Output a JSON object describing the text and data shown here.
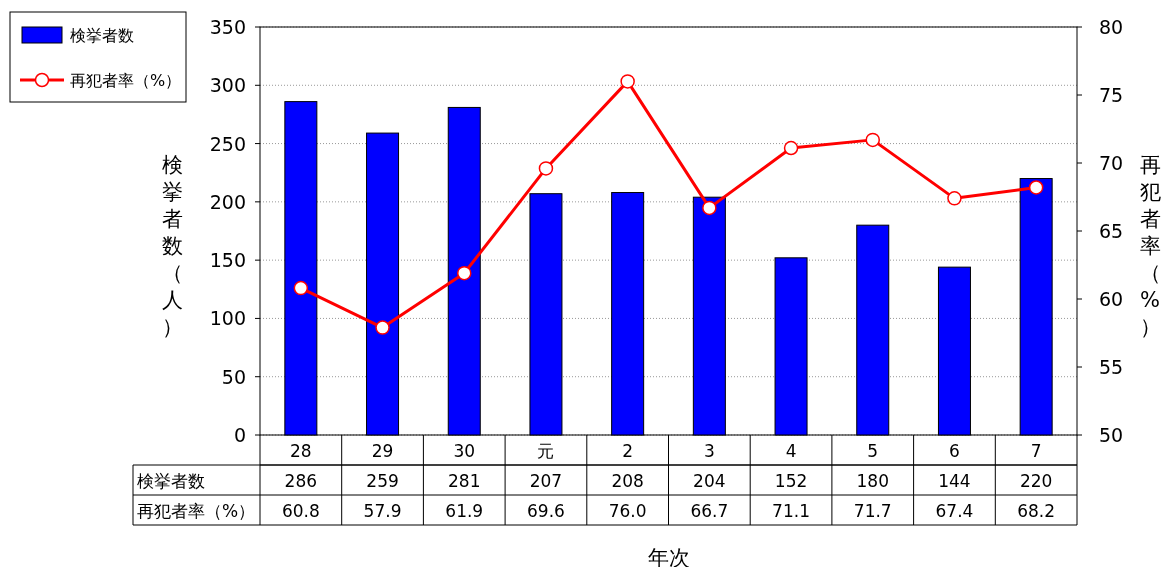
{
  "chart_data": {
    "type": "bar",
    "categories": [
      "28",
      "29",
      "30",
      "元",
      "2",
      "3",
      "4",
      "5",
      "6",
      "7"
    ],
    "xlabel": "年次",
    "ylabel": "検挙者数（人）",
    "y2label": "再犯者率（%）",
    "ylim": [
      0,
      350
    ],
    "yticks": [
      0,
      50,
      100,
      150,
      200,
      250,
      300,
      350
    ],
    "y2lim": [
      50,
      80
    ],
    "y2ticks": [
      50,
      55,
      60,
      65,
      70,
      75,
      80
    ],
    "grid": "y",
    "legend": "top left",
    "series": [
      {
        "name": "検挙者数",
        "color": "#0000ff",
        "values": [
          286,
          259,
          281,
          207,
          208,
          204,
          152,
          180,
          144,
          220
        ],
        "value_labels": [
          "286",
          "259",
          "281",
          "207",
          "208",
          "204",
          "152",
          "180",
          "144",
          "220"
        ]
      },
      {
        "name": "再犯者率（%）",
        "type": "line",
        "axis": "y2",
        "color": "#ff0000",
        "marker": "circle",
        "values": [
          60.8,
          57.9,
          61.9,
          69.6,
          76.0,
          66.7,
          71.1,
          71.7,
          67.4,
          68.2
        ],
        "value_labels": [
          "60.8",
          "57.9",
          "61.9",
          "69.6",
          "76.0",
          "66.7",
          "71.1",
          "71.7",
          "67.4",
          "68.2"
        ]
      }
    ]
  }
}
